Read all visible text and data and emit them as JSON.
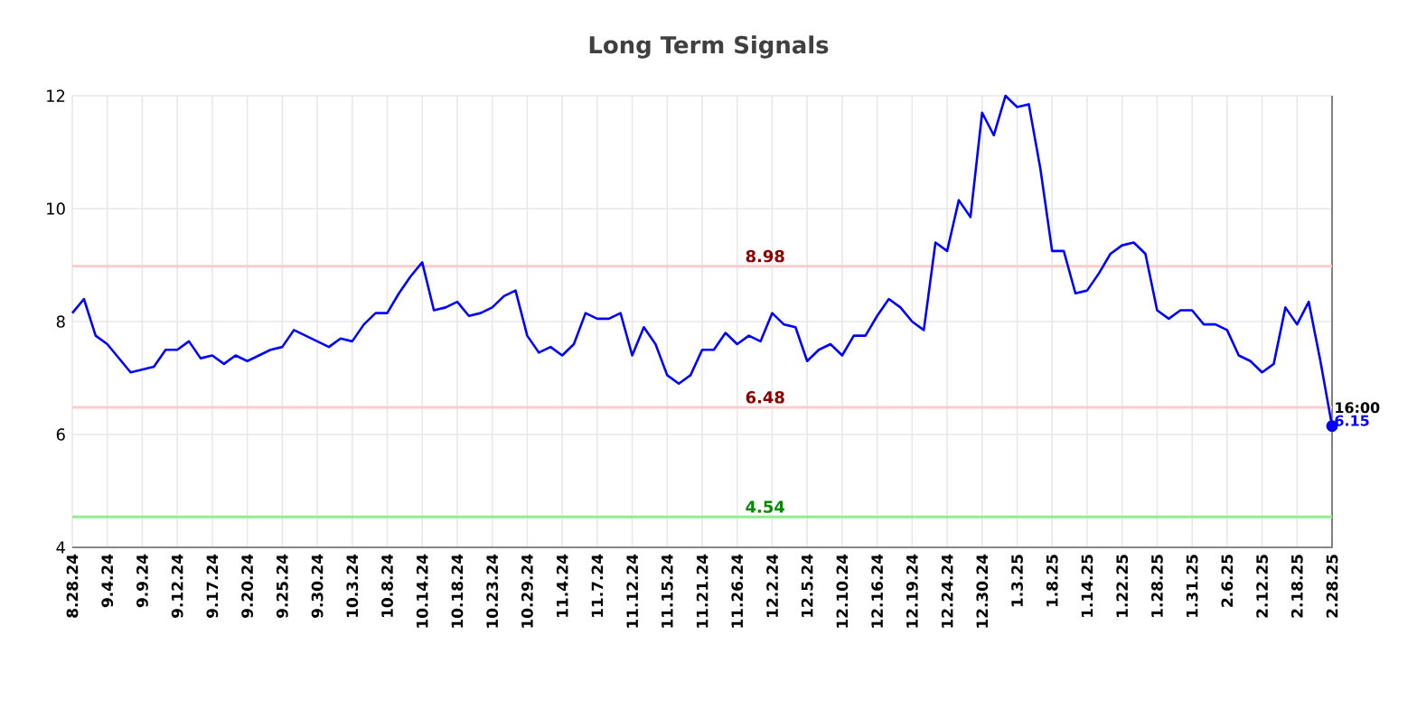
{
  "chart_data": {
    "type": "line",
    "title": "Long Term Signals",
    "categories": [
      "8.28.24",
      null,
      null,
      "9.4.24",
      null,
      null,
      "9.9.24",
      null,
      null,
      "9.12.24",
      null,
      null,
      "9.17.24",
      null,
      null,
      "9.20.24",
      null,
      null,
      "9.25.24",
      null,
      null,
      "9.30.24",
      null,
      null,
      "10.3.24",
      null,
      null,
      "10.8.24",
      null,
      null,
      "10.14.24",
      null,
      null,
      "10.18.24",
      null,
      null,
      "10.23.24",
      null,
      null,
      "10.29.24",
      null,
      null,
      "11.4.24",
      null,
      null,
      "11.7.24",
      null,
      null,
      "11.12.24",
      null,
      null,
      "11.15.24",
      null,
      null,
      "11.21.24",
      null,
      null,
      "11.26.24",
      null,
      null,
      "12.2.24",
      null,
      null,
      "12.5.24",
      null,
      null,
      "12.10.24",
      null,
      null,
      "12.16.24",
      null,
      null,
      "12.19.24",
      null,
      null,
      "12.24.24",
      null,
      null,
      "12.30.24",
      null,
      null,
      "1.3.25",
      null,
      null,
      "1.8.25",
      null,
      null,
      "1.14.25",
      null,
      null,
      "1.22.25",
      null,
      null,
      "1.28.25",
      null,
      null,
      "1.31.25",
      null,
      null,
      "2.6.25",
      null,
      null,
      "2.12.25",
      null,
      null,
      "2.18.25",
      null,
      null,
      "2.28.25"
    ],
    "series": [
      {
        "color": "#0000ff",
        "values": [
          8.15,
          8.4,
          7.75,
          7.6,
          7.35,
          7.1,
          7.15,
          7.2,
          7.5,
          7.5,
          7.65,
          7.35,
          7.4,
          7.25,
          7.4,
          7.3,
          7.4,
          7.5,
          7.55,
          7.85,
          7.75,
          7.65,
          7.55,
          7.7,
          7.65,
          7.95,
          8.15,
          8.15,
          8.5,
          8.8,
          9.05,
          8.2,
          8.25,
          8.35,
          8.1,
          8.15,
          8.25,
          8.45,
          8.55,
          7.75,
          7.45,
          7.55,
          7.4,
          7.6,
          8.15,
          8.05,
          8.05,
          8.15,
          7.4,
          7.9,
          7.6,
          7.05,
          6.9,
          7.05,
          7.5,
          7.5,
          7.8,
          7.6,
          7.75,
          7.65,
          8.15,
          7.95,
          7.9,
          7.3,
          7.5,
          7.6,
          7.4,
          7.75,
          7.75,
          8.1,
          8.4,
          8.25,
          8.0,
          7.85,
          9.4,
          9.25,
          10.15,
          9.85,
          11.7,
          11.3,
          12.0,
          11.8,
          11.85,
          10.7,
          9.25,
          9.25,
          8.5,
          8.55,
          8.85,
          9.2,
          9.35,
          9.4,
          9.2,
          8.2,
          8.05,
          8.2,
          8.2,
          7.95,
          7.95,
          7.85,
          7.4,
          7.3,
          7.1,
          7.25,
          8.25,
          7.95,
          8.35,
          7.3,
          6.15
        ]
      }
    ],
    "ylim": [
      4,
      12
    ],
    "yticks": [
      4,
      6,
      8,
      10,
      12
    ],
    "grid": true,
    "ref_lines": [
      {
        "axis": "y",
        "value": 8.98,
        "label": "8.98",
        "color": "#ffcccc"
      },
      {
        "axis": "y",
        "value": 6.48,
        "label": "6.48",
        "color": "#ffcccc"
      },
      {
        "axis": "y",
        "value": 4.54,
        "label": "4.54",
        "color": "#90ee90"
      }
    ],
    "annotations": [
      {
        "text": "16:00",
        "x": "2.28.25",
        "y": 6.15
      },
      {
        "text": "6.15",
        "x": "2.28.25",
        "y": 6.15
      }
    ]
  }
}
